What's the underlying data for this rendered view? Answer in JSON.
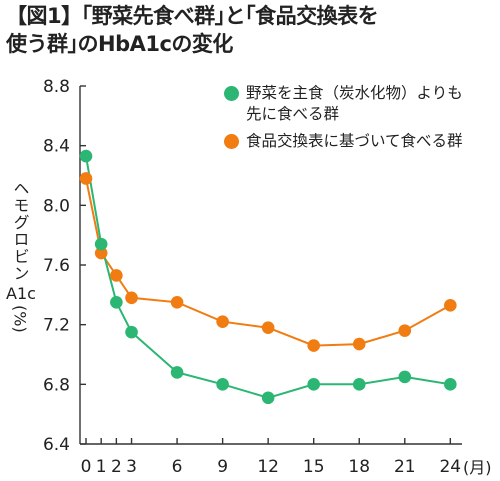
{
  "title": {
    "line1": "【図1】｢野菜先食べ群｣と｢食品交換表を",
    "line2": "使う群｣のHbA1cの変化"
  },
  "y_axis": {
    "label_vertical": "ヘモグロビン",
    "label_unit": "A1c",
    "label_pct": "(%)"
  },
  "x_axis": {
    "unit": "(月)"
  },
  "legend": [
    {
      "label_line1": "野菜を主食（炭水化物）よりも",
      "label_line2": "先に食べる群",
      "color": "#2bb673"
    },
    {
      "label_line1": "食品交換表に基づいて食べる群",
      "label_line2": "",
      "color": "#f07c12"
    }
  ],
  "chart_data": {
    "type": "line",
    "title": "【図1】｢野菜先食べ群｣と｢食品交換表を使う群｣のHbA1cの変化",
    "xlabel": "(月)",
    "ylabel": "ヘモグロビンA1c(%)",
    "x": [
      0,
      1,
      2,
      3,
      6,
      9,
      12,
      15,
      18,
      21,
      24
    ],
    "x_tick_labels": [
      "0",
      "1",
      "2",
      "3",
      "6",
      "9",
      "12",
      "15",
      "18",
      "21",
      "24"
    ],
    "ylim": [
      6.4,
      8.8
    ],
    "y_ticks": [
      6.4,
      6.8,
      7.2,
      7.6,
      8.0,
      8.4,
      8.8
    ],
    "y_tick_labels": [
      "6.4",
      "6.8",
      "7.2",
      "7.6",
      "8.0",
      "8.4",
      "8.8"
    ],
    "grid": false,
    "series": [
      {
        "name": "野菜を主食（炭水化物）よりも先に食べる群",
        "color": "#2bb673",
        "values": [
          8.33,
          7.74,
          7.35,
          7.15,
          6.88,
          6.8,
          6.71,
          6.8,
          6.8,
          6.85,
          6.8
        ]
      },
      {
        "name": "食品交換表に基づいて食べる群",
        "color": "#f07c12",
        "values": [
          8.18,
          7.68,
          7.53,
          7.38,
          7.35,
          7.22,
          7.18,
          7.06,
          7.07,
          7.16,
          7.33
        ]
      }
    ]
  }
}
